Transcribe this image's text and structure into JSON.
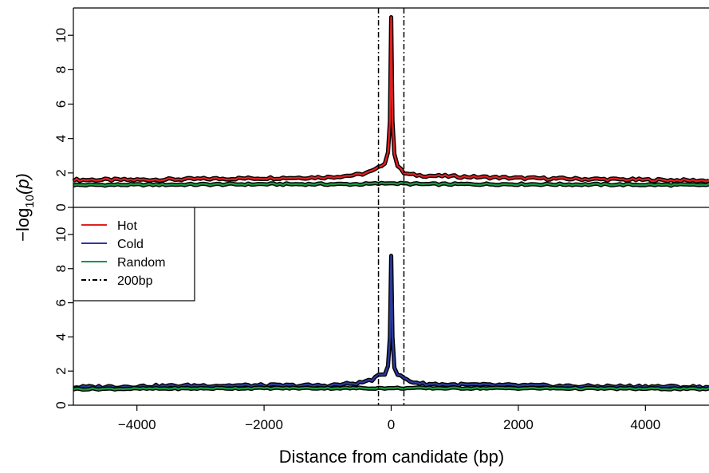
{
  "chart_data": [
    {
      "type": "line",
      "panel": "top",
      "xlim": [
        -5000,
        5000
      ],
      "ylim": [
        0,
        11.4
      ],
      "y_ticks": [
        0,
        2,
        4,
        6,
        8,
        10
      ],
      "series": [
        {
          "key": "hot",
          "color": "#e02020",
          "points": [
            [
              -5000,
              1.6
            ],
            [
              -4000,
              1.6
            ],
            [
              -3000,
              1.65
            ],
            [
              -2000,
              1.7
            ],
            [
              -1000,
              1.75
            ],
            [
              -500,
              1.9
            ],
            [
              -300,
              2.1
            ],
            [
              -200,
              2.3
            ],
            [
              -100,
              2.6
            ],
            [
              -50,
              3.2
            ],
            [
              -20,
              5.0
            ],
            [
              0,
              11.05
            ],
            [
              20,
              5.0
            ],
            [
              50,
              3.1
            ],
            [
              100,
              2.4
            ],
            [
              200,
              2.0
            ],
            [
              300,
              1.9
            ],
            [
              500,
              1.85
            ],
            [
              1000,
              1.8
            ],
            [
              2000,
              1.7
            ],
            [
              3000,
              1.65
            ],
            [
              4000,
              1.6
            ],
            [
              5000,
              1.55
            ]
          ],
          "noise": 0.07
        },
        {
          "key": "random",
          "color": "#1a9641",
          "points": [
            [
              -5000,
              1.3
            ],
            [
              -2000,
              1.35
            ],
            [
              -500,
              1.35
            ],
            [
              0,
              1.4
            ],
            [
              500,
              1.35
            ],
            [
              2000,
              1.35
            ],
            [
              5000,
              1.3
            ]
          ],
          "noise": 0.05
        }
      ]
    },
    {
      "type": "line",
      "panel": "bottom",
      "xlim": [
        -5000,
        5000
      ],
      "ylim": [
        0,
        11.4
      ],
      "y_ticks": [
        0,
        2,
        4,
        6,
        8,
        10
      ],
      "series": [
        {
          "key": "cold",
          "color": "#2b3a9a",
          "points": [
            [
              -5000,
              1.05
            ],
            [
              -4000,
              1.1
            ],
            [
              -3000,
              1.15
            ],
            [
              -2000,
              1.15
            ],
            [
              -1000,
              1.15
            ],
            [
              -500,
              1.3
            ],
            [
              -300,
              1.5
            ],
            [
              -200,
              1.7
            ],
            [
              -100,
              1.85
            ],
            [
              -50,
              2.3
            ],
            [
              -20,
              4.0
            ],
            [
              0,
              8.75
            ],
            [
              20,
              4.0
            ],
            [
              50,
              2.2
            ],
            [
              100,
              1.8
            ],
            [
              200,
              1.6
            ],
            [
              300,
              1.4
            ],
            [
              500,
              1.25
            ],
            [
              1000,
              1.2
            ],
            [
              2000,
              1.15
            ],
            [
              3000,
              1.1
            ],
            [
              4000,
              1.1
            ],
            [
              5000,
              1.05
            ]
          ],
          "noise": 0.08
        },
        {
          "key": "random",
          "color": "#1a9641",
          "points": [
            [
              -5000,
              0.95
            ],
            [
              -2000,
              1.0
            ],
            [
              0,
              1.0
            ],
            [
              2000,
              1.0
            ],
            [
              5000,
              0.95
            ]
          ],
          "noise": 0.04
        }
      ]
    }
  ],
  "x_axis": {
    "title": "Distance from candidate (bp)",
    "ticks": [
      -4000,
      -2000,
      0,
      2000,
      4000
    ],
    "tick_labels": [
      "−4000",
      "−2000",
      "0",
      "2000",
      "4000"
    ]
  },
  "y_axis": {
    "title_base": "−log",
    "title_sub": "10",
    "title_arg": "(p)"
  },
  "vlines": [
    -200,
    200
  ],
  "legend": {
    "placement": "top-left of bottom panel",
    "entries": [
      {
        "label": "Hot",
        "color": "#e02020",
        "style": "solid"
      },
      {
        "label": "Cold",
        "color": "#2b3a9a",
        "style": "solid"
      },
      {
        "label": "Random",
        "color": "#1a9641",
        "style": "solid"
      },
      {
        "label": "200bp",
        "color": "#000000",
        "style": "dashdot"
      }
    ]
  }
}
